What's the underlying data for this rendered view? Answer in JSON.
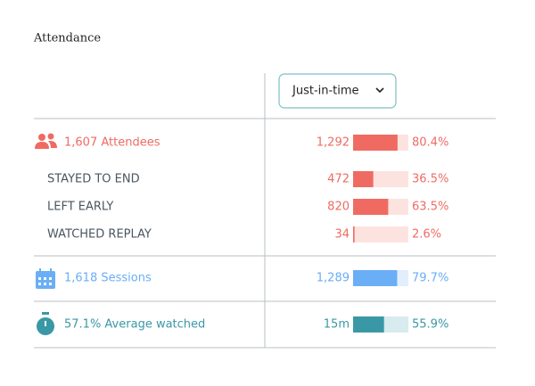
{
  "header": {
    "title": "Attendance"
  },
  "dropdown": {
    "label": "Just-in-time"
  },
  "rows": [
    {
      "label": "1,607 Attendees",
      "count": "1,292",
      "pct": 80.4,
      "pct_label": "80.4%",
      "color": "#ef6b62",
      "track_color": "#fde3e0",
      "kind": "main"
    },
    {
      "label": "STAYED TO END",
      "count": "472",
      "pct": 36.5,
      "pct_label": "36.5%",
      "color": "#ef6b62",
      "track_color": "#fde3e0",
      "kind": "sub"
    },
    {
      "label": "LEFT EARLY",
      "count": "820",
      "pct": 63.5,
      "pct_label": "63.5%",
      "color": "#ef6b62",
      "track_color": "#fde3e0",
      "kind": "sub"
    },
    {
      "label": "WATCHED REPLAY",
      "count": "34",
      "pct": 2.6,
      "pct_label": "2.6%",
      "color": "#ef6b62",
      "track_color": "#fde3e0",
      "kind": "sub"
    },
    {
      "label": "1,618 Sessions",
      "count": "1,289",
      "pct": 79.7,
      "pct_label": "79.7%",
      "color": "#6aaef5",
      "track_color": "#e2eefc",
      "kind": "main"
    },
    {
      "label": "57.1% Average watched",
      "count": "15m",
      "pct": 55.9,
      "pct_label": "55.9%",
      "color": "#3a98a6",
      "track_color": "#d8ebee",
      "kind": "main"
    }
  ]
}
